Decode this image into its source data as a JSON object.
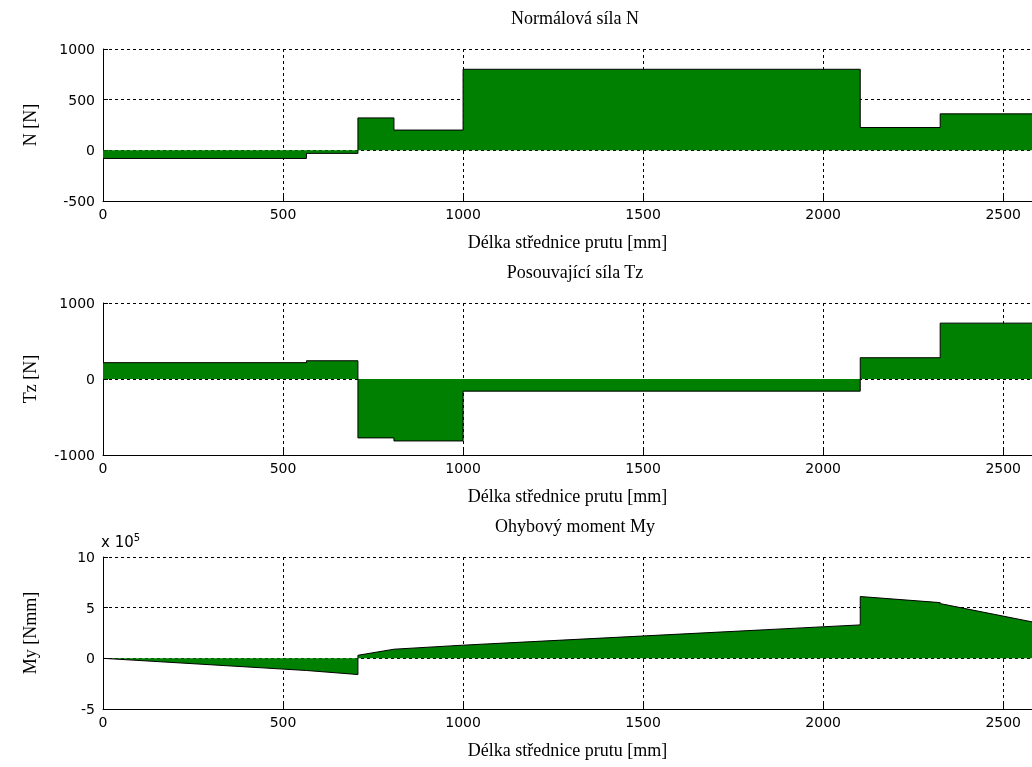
{
  "chart_data": [
    {
      "type": "area",
      "title": "Normálová síla N",
      "xlabel": "Délka střednice prutu [mm]",
      "ylabel": "N [N]",
      "xlim": [
        0,
        2580
      ],
      "xticks": [
        0,
        500,
        1000,
        1500,
        2000,
        2500
      ],
      "ylim": [
        -500,
        1000
      ],
      "yticks": [
        -500,
        0,
        500,
        1000
      ],
      "grid": true,
      "x": [
        0,
        565,
        565,
        708,
        708,
        808,
        808,
        1000,
        1000,
        2103,
        2103,
        2325,
        2325,
        2580
      ],
      "series": [
        {
          "color": "#008000",
          "values": [
            -80,
            -80,
            -30,
            -30,
            320,
            320,
            200,
            200,
            800,
            800,
            225,
            225,
            360,
            360
          ]
        }
      ]
    },
    {
      "type": "area",
      "title": "Posouvající síla Tz",
      "xlabel": "Délka střednice prutu [mm]",
      "ylabel": "Tz [N]",
      "xlim": [
        0,
        2580
      ],
      "xticks": [
        0,
        500,
        1000,
        1500,
        2000,
        2500
      ],
      "ylim": [
        -1000,
        1000
      ],
      "yticks": [
        -1000,
        0,
        1000
      ],
      "grid": true,
      "x": [
        0,
        565,
        565,
        708,
        708,
        808,
        808,
        1000,
        1000,
        2103,
        2103,
        2325,
        2325,
        2580
      ],
      "series": [
        {
          "color": "#008000",
          "values": [
            215,
            215,
            240,
            240,
            -775,
            -775,
            -815,
            -815,
            -160,
            -160,
            280,
            280,
            735,
            735
          ]
        }
      ]
    },
    {
      "type": "area",
      "title": "Ohybový moment My",
      "xlabel": "Délka střednice prutu [mm]",
      "ylabel": "My [Nmm]",
      "annotations": [
        "x 10$^{5}$"
      ],
      "xlim": [
        0,
        2580
      ],
      "xticks": [
        0,
        500,
        1000,
        1500,
        2000,
        2500
      ],
      "ylim": [
        -5,
        10
      ],
      "yticks": [
        -5,
        0,
        5,
        10
      ],
      "grid": true,
      "x": [
        0,
        565,
        565,
        708,
        708,
        808,
        1000,
        2103,
        2103,
        2325,
        2325,
        2580
      ],
      "series": [
        {
          "color": "#008000",
          "values": [
            0,
            -1.2,
            -1.25,
            -1.6,
            0.3,
            0.9,
            1.3,
            3.3,
            6.1,
            5.5,
            5.4,
            3.6
          ]
        }
      ]
    }
  ]
}
